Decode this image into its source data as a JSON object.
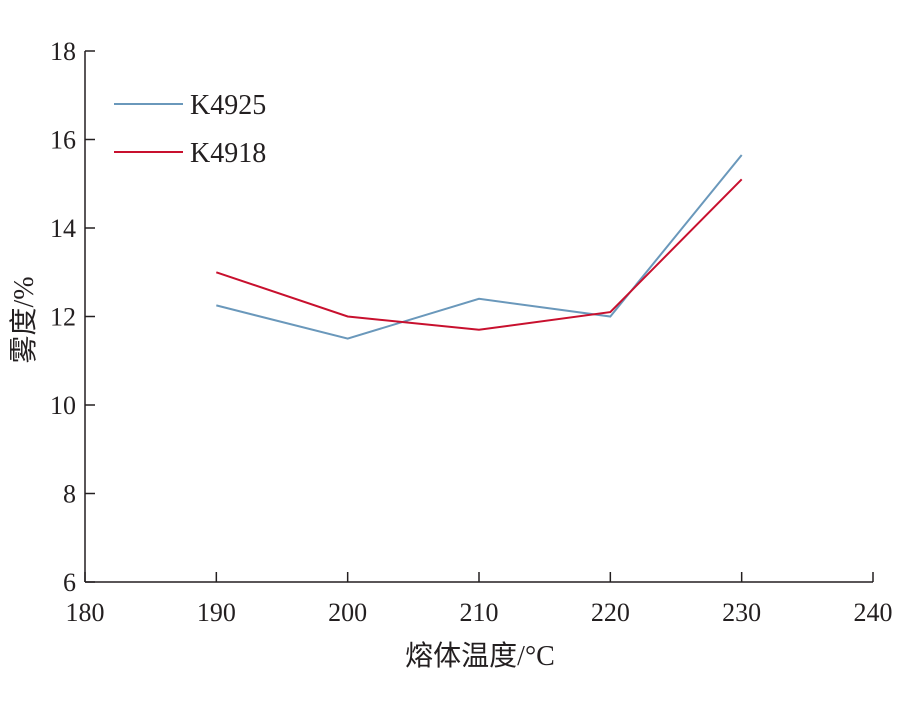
{
  "chart_data": {
    "type": "line",
    "title": "",
    "xlabel": "熔体温度/°C",
    "ylabel": "雾度/%",
    "xlim": [
      180,
      240
    ],
    "ylim": [
      6,
      18
    ],
    "xticks": [
      180,
      190,
      200,
      210,
      220,
      230,
      240
    ],
    "yticks": [
      6,
      8,
      10,
      12,
      14,
      16,
      18
    ],
    "x": [
      190,
      200,
      210,
      220,
      230
    ],
    "grid": false,
    "legend_position": "top-left",
    "series": [
      {
        "name": "K4925",
        "color": "#6a98bb",
        "values": [
          12.25,
          11.5,
          12.4,
          12.0,
          15.65
        ]
      },
      {
        "name": "K4918",
        "color": "#c8102e",
        "values": [
          13.0,
          12.0,
          11.7,
          12.1,
          15.1
        ]
      }
    ]
  }
}
